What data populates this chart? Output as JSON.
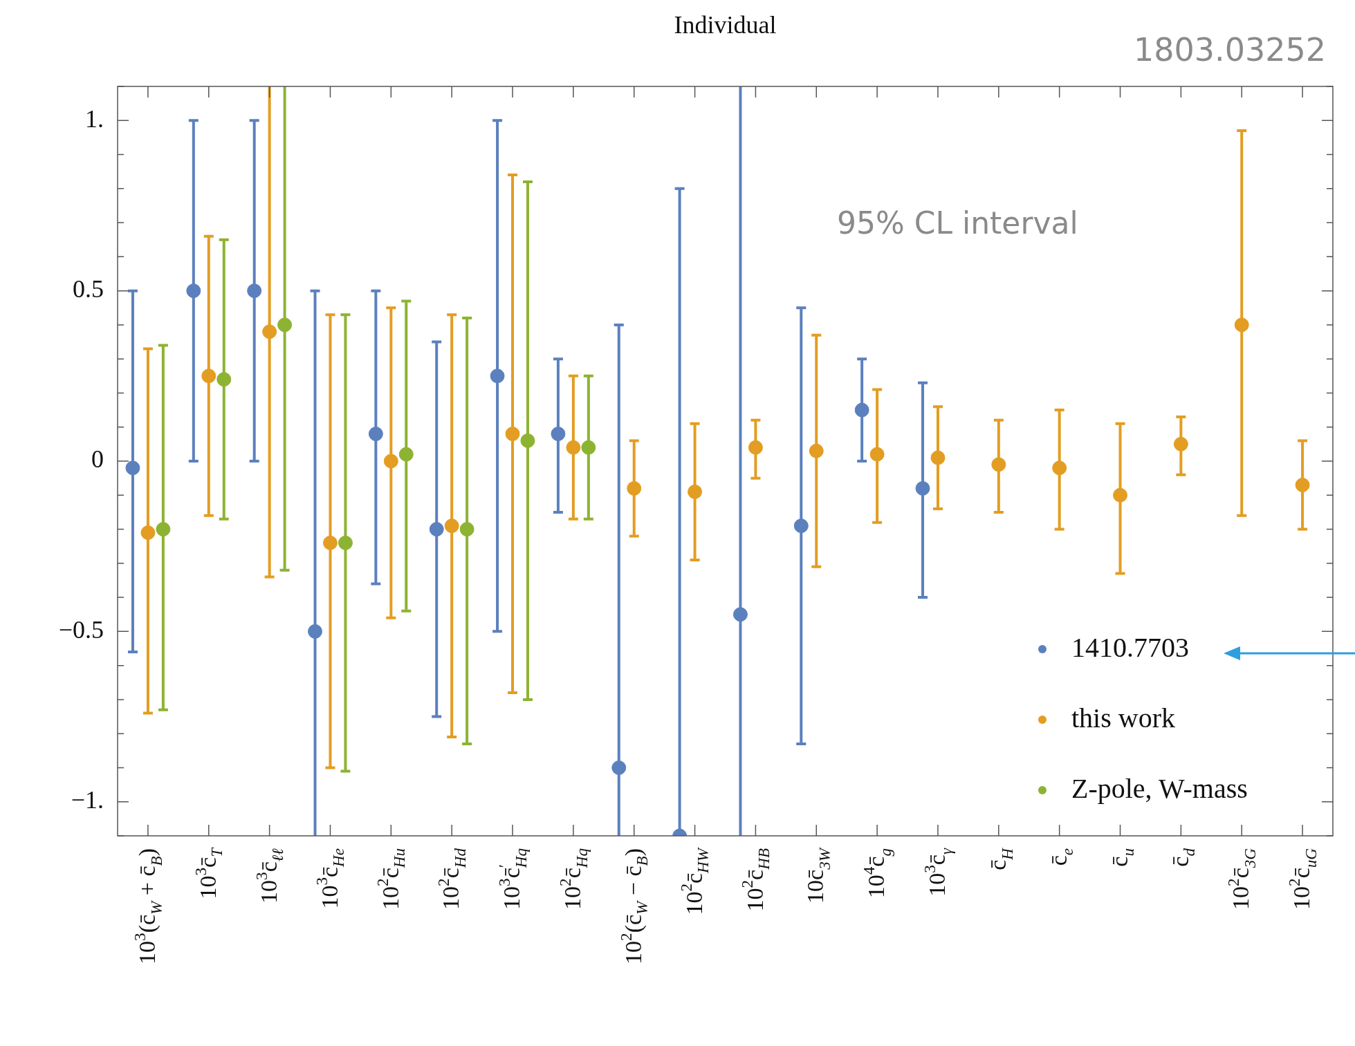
{
  "chart_data": {
    "type": "scatter",
    "title": "Individual",
    "annotations": [
      "1803.03252",
      "95% CL interval"
    ],
    "categories": [
      "10$^{3}$(c̄$_{W}$ + c̄$_{B}$)",
      "10$^{3}$c̄$_{T}$",
      "10$^{3}$c̄$_{ℓℓ}$",
      "10$^{3}$c̄$_{He}$",
      "10$^{2}$c̄$_{Hu}$",
      "10$^{2}$c̄$_{Hd}$",
      "10$^{3}$c̄$^{′}$$_{Hq}$",
      "10$^{2}$c̄$_{Hq}$",
      "10$^{2}$(c̄$_{W}$ − c̄$_{B}$)",
      "10$^{2}$c̄$_{HW}$",
      "10$^{2}$c̄$_{HB}$",
      "10c̄$_{3W}$",
      "10$^{4}$c̄$_{g}$",
      "10$^{3}$c̄$_{γ}$",
      "c̄$_{H}$",
      "c̄$_{e}$",
      "c̄$_{u}$",
      "c̄$_{d}$",
      "10$^{2}$c̄$_{3G}$",
      "10$^{2}$c̄$_{uG}$"
    ],
    "series": [
      {
        "name": "1410.7703",
        "color": "#5b80be",
        "values": [
          -0.02,
          0.5,
          0.5,
          -0.5,
          0.08,
          -0.2,
          0.25,
          0.08,
          -0.9,
          -1.1,
          -0.45,
          -0.19,
          0.15,
          -0.08,
          null,
          null,
          null,
          null,
          null,
          null
        ],
        "errors": [
          [
            -0.56,
            0.5
          ],
          [
            0.0,
            1.0
          ],
          [
            0.0,
            1.0
          ],
          [
            -1.1,
            0.5
          ],
          [
            -0.36,
            0.5
          ],
          [
            -0.75,
            0.35
          ],
          [
            -0.5,
            1.0
          ],
          [
            -0.15,
            0.3
          ],
          [
            -1.1,
            0.4
          ],
          [
            -1.1,
            0.8
          ],
          [
            -1.1,
            1.1
          ],
          [
            -0.83,
            0.45
          ],
          [
            0.0,
            0.3
          ],
          [
            -0.4,
            0.23
          ],
          null,
          null,
          null,
          null,
          null,
          null
        ]
      },
      {
        "name": "this work",
        "color": "#e39d22",
        "values": [
          -0.21,
          0.25,
          0.38,
          -0.24,
          0.0,
          -0.19,
          0.08,
          0.04,
          -0.08,
          -0.09,
          0.04,
          0.03,
          0.02,
          0.01,
          -0.01,
          -0.02,
          -0.1,
          0.05,
          0.4,
          -0.07
        ],
        "errors": [
          [
            -0.74,
            0.33
          ],
          [
            -0.16,
            0.66
          ],
          [
            -0.34,
            1.1
          ],
          [
            -0.9,
            0.43
          ],
          [
            -0.46,
            0.45
          ],
          [
            -0.81,
            0.43
          ],
          [
            -0.68,
            0.84
          ],
          [
            -0.17,
            0.25
          ],
          [
            -0.22,
            0.06
          ],
          [
            -0.29,
            0.11
          ],
          [
            -0.05,
            0.12
          ],
          [
            -0.31,
            0.37
          ],
          [
            -0.18,
            0.21
          ],
          [
            -0.14,
            0.16
          ],
          [
            -0.15,
            0.12
          ],
          [
            -0.2,
            0.15
          ],
          [
            -0.33,
            0.11
          ],
          [
            -0.04,
            0.13
          ],
          [
            -0.16,
            0.97
          ],
          [
            -0.2,
            0.06
          ]
        ]
      },
      {
        "name": "Z-pole, W-mass",
        "color": "#8db332",
        "values": [
          -0.2,
          0.24,
          0.4,
          -0.24,
          0.02,
          -0.2,
          0.06,
          0.04,
          null,
          null,
          null,
          null,
          null,
          null,
          null,
          null,
          null,
          null,
          null,
          null
        ],
        "errors": [
          [
            -0.73,
            0.34
          ],
          [
            -0.17,
            0.65
          ],
          [
            -0.32,
            1.1
          ],
          [
            -0.91,
            0.43
          ],
          [
            -0.44,
            0.47
          ],
          [
            -0.83,
            0.42
          ],
          [
            -0.7,
            0.82
          ],
          [
            -0.17,
            0.25
          ],
          null,
          null,
          null,
          null,
          null,
          null,
          null,
          null,
          null,
          null,
          null,
          null
        ]
      }
    ],
    "ylim": [
      -1.1,
      1.1
    ],
    "yticks": [
      {
        "value": -1.1,
        "label": null
      },
      {
        "value": -1,
        "label": "−1."
      },
      {
        "value": -0.9,
        "label": null
      },
      {
        "value": -0.8,
        "label": null
      },
      {
        "value": -0.7,
        "label": null
      },
      {
        "value": -0.6,
        "label": null
      },
      {
        "value": -0.5,
        "label": "−0.5"
      },
      {
        "value": -0.4,
        "label": null
      },
      {
        "value": -0.3,
        "label": null
      },
      {
        "value": -0.2,
        "label": null
      },
      {
        "value": -0.1,
        "label": null
      },
      0,
      {
        "value": 0.1,
        "label": null
      },
      {
        "value": 0.2,
        "label": null
      },
      {
        "value": 0.3,
        "label": null
      },
      {
        "value": 0.4,
        "label": null
      },
      0.5,
      {
        "value": 0.6,
        "label": null
      },
      {
        "value": 0.7,
        "label": null
      },
      {
        "value": 0.8,
        "label": null
      },
      {
        "value": 0.9,
        "label": null
      },
      {
        "value": 1,
        "label": "1."
      },
      {
        "value": 1.1,
        "label": null
      }
    ],
    "grid": false,
    "legend": "bottom right",
    "marker": "circle"
  }
}
